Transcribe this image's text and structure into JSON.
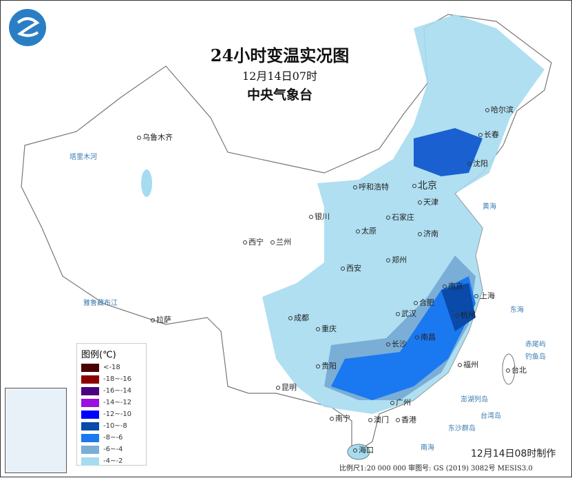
{
  "header": {
    "title": "24小时变温实况图",
    "time": "12月14日07时",
    "agency": "中央气象台"
  },
  "legend": {
    "title": "图例(℃)",
    "items": [
      {
        "label": "<-18",
        "color": "#4a0000"
      },
      {
        "label": "-18~-16",
        "color": "#8b0000"
      },
      {
        "label": "-16~-14",
        "color": "#4b0082"
      },
      {
        "label": "-14~-12",
        "color": "#9b10e0"
      },
      {
        "label": "-12~-10",
        "color": "#0000ff"
      },
      {
        "label": "-10~-8",
        "color": "#0a4aa8"
      },
      {
        "label": "-8~-6",
        "color": "#1a78f0"
      },
      {
        "label": "-6~-4",
        "color": "#7aaed6"
      },
      {
        "label": "-4~-2",
        "color": "#a6dcf0"
      }
    ]
  },
  "cities": [
    "乌鲁木齐",
    "拉萨",
    "西宁",
    "兰州",
    "银川",
    "呼和浩特",
    "北京",
    "天津",
    "石家庄",
    "太原",
    "济南",
    "郑州",
    "西安",
    "成都",
    "重庆",
    "武汉",
    "合肥",
    "南京",
    "上海",
    "杭州",
    "长沙",
    "南昌",
    "福州",
    "贵阳",
    "昆明",
    "南宁",
    "广州",
    "澳门",
    "香港",
    "海口",
    "台北",
    "沈阳",
    "长春",
    "哈尔滨"
  ],
  "geo_labels": [
    "塔里木河",
    "雅鲁藏布江",
    "黄海",
    "东海",
    "南海",
    "赤尾屿",
    "钓鱼岛",
    "澎湖列岛",
    "台湾岛",
    "东沙群岛"
  ],
  "footer": {
    "made": "12月14日08时制作",
    "info": "比例尺1:20 000 000   审图号: GS (2019) 3082号 MESIS3.0"
  }
}
